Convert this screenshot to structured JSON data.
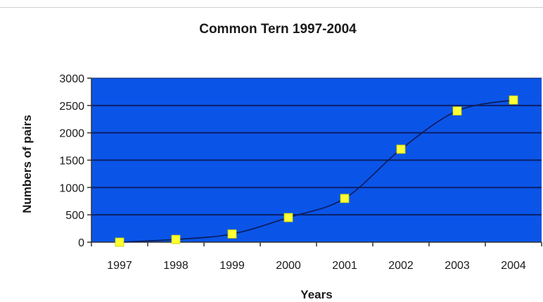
{
  "chart_data": {
    "type": "line",
    "title": "Common Tern 1997-2004",
    "xlabel": "Years",
    "ylabel": "Numbers of pairs",
    "categories": [
      "1997",
      "1998",
      "1999",
      "2000",
      "2001",
      "2002",
      "2003",
      "2004"
    ],
    "series": [
      {
        "values": [
          0,
          50,
          150,
          450,
          800,
          1700,
          2400,
          2600
        ]
      }
    ],
    "ylim": [
      0,
      3000
    ],
    "yticks": [
      "0",
      "500",
      "1000",
      "1500",
      "2000",
      "2500",
      "3000"
    ],
    "grid": true,
    "legend": "none",
    "colors": {
      "plot_background": "#0a55e8",
      "gridline": "#0b1f66",
      "line": "#0b1f66",
      "marker": "#ffff33"
    }
  }
}
